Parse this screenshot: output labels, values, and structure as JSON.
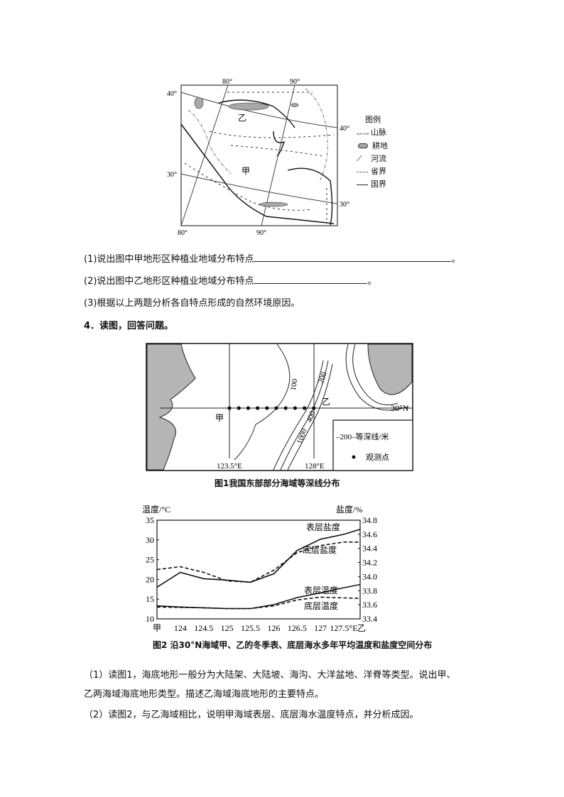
{
  "map1": {
    "lon_labels_top": [
      "80°",
      "90°"
    ],
    "lon_labels_bottom": [
      "80°",
      "90°"
    ],
    "lat_labels_left": [
      "40°",
      "30°"
    ],
    "lat_labels_right": [
      "40°",
      "30°"
    ],
    "region_labels": [
      "乙",
      "甲"
    ],
    "legend": {
      "title": "图例",
      "items": [
        {
          "icon": "mountain-icon",
          "label": "山脉"
        },
        {
          "icon": "farmland-icon",
          "label": "耕地"
        },
        {
          "icon": "river-icon",
          "label": "河流"
        },
        {
          "icon": "province-border-icon",
          "label": "省界"
        },
        {
          "icon": "national-border-icon",
          "label": "国界"
        }
      ]
    },
    "colors": {
      "farmland": "#a8a8a8"
    }
  },
  "questions3": [
    {
      "text": "(1)说出图中甲地形区种植业地域分布特点",
      "end": "。"
    },
    {
      "text": "(2)说出图中乙地形区种植业地域分布特点",
      "end": "。"
    },
    {
      "text": "(3)根据以上两题分析各自特点形成的自然环境原因。",
      "end": ""
    }
  ],
  "q4_heading": "4．读图，回答问题。",
  "map2": {
    "lat_label": "30°N",
    "lon_labels": [
      "123.5°E",
      "128°E"
    ],
    "point_labels": [
      "甲",
      "乙"
    ],
    "contour_labels": [
      "100",
      "200",
      "1000",
      "400"
    ],
    "legend": [
      {
        "icon": "contour-icon",
        "value": "200",
        "label": "等深线/米"
      },
      {
        "icon": "observation-point-icon",
        "label": "观测点"
      }
    ],
    "caption": "图1我国东部部分海域等深线分布",
    "colors": {
      "land": "#b5b5b5"
    }
  },
  "chart_data": {
    "type": "line",
    "title": "图2 沿30°N海域甲、乙的冬季表、底层海水多年平均温度和盐度空间分布",
    "ylabel_left": "温度/°C",
    "ylabel_right": "盐度/%",
    "x_tick_labels": [
      "甲",
      "124",
      "124.5",
      "125",
      "125.5",
      "126",
      "126.5",
      "127",
      "127.5°E",
      "乙"
    ],
    "x": [
      123.5,
      124,
      124.5,
      125,
      125.5,
      126,
      126.5,
      127,
      127.5,
      127.85
    ],
    "xlim": [
      123.5,
      127.85
    ],
    "ylim_left": [
      10,
      35
    ],
    "yticks_left": [
      10,
      15,
      20,
      25,
      30,
      35
    ],
    "ylim_right": [
      33.4,
      34.8
    ],
    "yticks_right": [
      "33.4",
      "33.6",
      "33.8",
      "34.0",
      "34.2",
      "34.4",
      "34.6",
      "34.8"
    ],
    "grid": false,
    "series": [
      {
        "name": "表层盐度",
        "axis": "right",
        "style": "solid",
        "values": [
          33.85,
          34.06,
          33.97,
          33.95,
          33.92,
          34.04,
          34.37,
          34.53,
          34.6,
          34.67
        ]
      },
      {
        "name": "底层盐度",
        "axis": "right",
        "style": "dashed",
        "values": [
          34.1,
          34.14,
          34.06,
          33.94,
          33.92,
          34.09,
          34.34,
          34.44,
          34.49,
          34.49
        ]
      },
      {
        "name": "表层温度",
        "axis": "left",
        "style": "solid",
        "values": [
          13.3,
          13.0,
          12.8,
          12.6,
          12.6,
          13.6,
          15.4,
          16.6,
          17.9,
          18.7
        ]
      },
      {
        "name": "底层温度",
        "axis": "left",
        "style": "dashed",
        "values": [
          13.0,
          12.9,
          12.8,
          12.6,
          12.6,
          13.3,
          14.8,
          15.5,
          15.3,
          15.2
        ]
      }
    ]
  },
  "questions4": [
    "（1）读图1，海底地形一般分为大陆架、大陆坡、海沟、大洋盆地、洋脊等类型。说出甲、",
    "乙两海域海底地形类型。描述乙海域海底地形的主要特点。",
    "（2）读图2，与乙海域相比，说明甲海域表层、底层海水温度特点，并分析成因。"
  ]
}
